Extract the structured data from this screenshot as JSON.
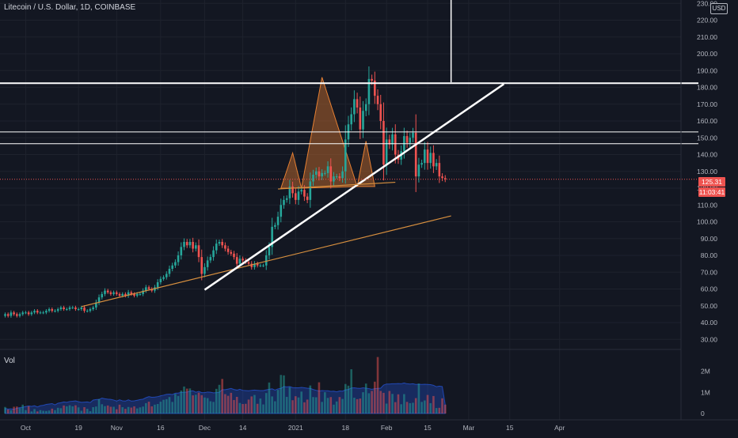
{
  "header": {
    "symbol": "Litecoin / U.S. Dollar, 1D, COINBASE",
    "volume_label": "Vol",
    "currency_badge": "USD",
    "last_price_tag": "125.31",
    "countdown_tag": "11:03:41"
  },
  "colors": {
    "background": "#131722",
    "grid": "#1e222d",
    "axis_text": "#b2b5be",
    "up_candle": "#26a69a",
    "down_candle": "#ef5350",
    "pattern_fill": "#b0632b",
    "pattern_stroke": "#e57f32",
    "trendline_orange": "#d8903f",
    "drawing_white": "#ffffff",
    "volume_ma_fill": "#2962ff"
  },
  "chart_data": [
    {
      "type": "candlestick",
      "title": "Litecoin / U.S. Dollar, 1D, COINBASE",
      "ylim": [
        24,
        232
      ],
      "y_scale": "linear",
      "y_ticks": [
        30,
        40,
        50,
        60,
        70,
        80,
        90,
        100,
        110,
        120,
        130,
        140,
        150,
        160,
        170,
        180,
        190,
        200,
        210,
        220,
        230
      ],
      "y_tick_labels": [
        "30.00",
        "40.00",
        "50.00",
        "60.00",
        "70.00",
        "80.00",
        "90.00",
        "100.00",
        "110.00",
        "120.00",
        "130.00",
        "140.00",
        "150.00",
        "160.00",
        "170.00",
        "180.00",
        "190.00",
        "200.00",
        "210.00",
        "220.00",
        "230.00"
      ],
      "x_start": "2020-09-24",
      "x_tick_labels": [
        {
          "label": "Oct",
          "date": "2020-10-01"
        },
        {
          "label": "19",
          "date": "2020-10-19"
        },
        {
          "label": "Nov",
          "date": "2020-11-01"
        },
        {
          "label": "16",
          "date": "2020-11-16"
        },
        {
          "label": "Dec",
          "date": "2020-12-01"
        },
        {
          "label": "14",
          "date": "2020-12-14"
        },
        {
          "label": "2021",
          "date": "2021-01-01"
        },
        {
          "label": "18",
          "date": "2021-01-18"
        },
        {
          "label": "Feb",
          "date": "2021-02-01"
        },
        {
          "label": "15",
          "date": "2021-02-15"
        },
        {
          "label": "Mar",
          "date": "2021-03-01"
        },
        {
          "label": "15",
          "date": "2021-03-15"
        },
        {
          "label": "Apr",
          "date": "2021-04-01"
        }
      ],
      "last_price": 125.31,
      "series": [
        {
          "name": "Price",
          "close": [
            45,
            44,
            46,
            45,
            44,
            45,
            46,
            46,
            45,
            46,
            47,
            46,
            46,
            46,
            47,
            48,
            47,
            47,
            48,
            49,
            48,
            48,
            49,
            49,
            48,
            48,
            49,
            47,
            47,
            48,
            49,
            52,
            55,
            57,
            59,
            58,
            57,
            58,
            57,
            56,
            57,
            56,
            58,
            57,
            56,
            57,
            57,
            59,
            61,
            60,
            59,
            61,
            64,
            66,
            67,
            69,
            72,
            74,
            76,
            80,
            85,
            88,
            86,
            88,
            84,
            86,
            79,
            69,
            73,
            77,
            79,
            83,
            87,
            88,
            86,
            84,
            82,
            81,
            79,
            75,
            78,
            77,
            76,
            75,
            73,
            75,
            74,
            74,
            74,
            80,
            85,
            97,
            98,
            103,
            110,
            113,
            114,
            121,
            117,
            113,
            118,
            119,
            115,
            113,
            124,
            128,
            130,
            127,
            129,
            129,
            133,
            124,
            127,
            127,
            126,
            130,
            149,
            158,
            164,
            173,
            168,
            155,
            166,
            170,
            185,
            184,
            175,
            170,
            160,
            134,
            149,
            146,
            152,
            140,
            137,
            142,
            151,
            147,
            150,
            153,
            127,
            134,
            135,
            143,
            135,
            141,
            133,
            135,
            127,
            126,
            125.31
          ],
          "volume_millions": [
            0.24,
            0.21,
            0.22,
            0.2,
            0.25,
            0.28,
            0.3,
            0.33,
            0.36,
            0.34,
            0.37,
            0.31,
            0.37,
            0.39,
            0.43,
            0.45,
            0.47,
            0.41,
            0.49,
            0.51,
            0.55,
            0.53,
            0.57,
            0.58,
            0.6,
            0.56,
            0.53,
            0.54,
            0.55,
            0.52,
            0.64,
            0.66,
            0.67,
            0.73,
            0.7,
            0.68,
            0.67,
            0.64,
            0.59,
            0.65,
            0.6,
            0.59,
            0.65,
            0.59,
            0.6,
            0.63,
            0.66,
            0.68,
            0.75,
            0.8,
            0.77,
            0.78,
            0.8,
            0.84,
            0.87,
            0.91,
            0.92,
            0.9,
            0.96,
            0.97,
            1,
            1.01,
            1.02,
            1.06,
            1.08,
            1.01,
            1.05,
            0.99,
            0.99,
            1.02,
            1.01,
            0.98,
            0.99,
            1.01,
            1.13,
            1.13,
            1.16,
            1.19,
            1.14,
            1.11,
            1.15,
            1.1,
            1.09,
            1.08,
            1.1,
            1.11,
            1.1,
            1.09,
            1.09,
            1.12,
            1.15,
            1.17,
            1.11,
            1.17,
            1.19,
            1.28,
            1.26,
            1.28,
            1.23,
            1.22,
            1.22,
            1.24,
            1.22,
            1.2,
            1.19,
            1.14,
            1.1,
            1.07,
            1.09,
            1.08,
            1.08,
            1.05,
            1.06,
            1.03,
            1.07,
            1.06,
            1.12,
            1.14,
            1.21,
            1.22,
            1.2,
            1.19,
            1.22,
            1.2,
            1.18,
            1.15,
            1.18,
            1.19,
            1.2,
            1.35,
            1.4,
            1.4,
            1.41,
            1.41,
            1.42,
            1.41,
            1.45,
            1.41,
            1.4,
            1.41,
            1.38,
            1.39,
            1.38,
            1.39,
            1.38,
            1.37,
            1.34,
            1.27,
            1.3,
            1.28,
            0.42
          ]
        }
      ],
      "trendlines": [
        {
          "from": [
            "2020-10-20",
            49.5
          ],
          "to": [
            "2021-02-23",
            103.5
          ],
          "color": "orange"
        },
        {
          "from": [
            "2020-12-01",
            59.5
          ],
          "to": [
            "2021-03-13",
            182
          ],
          "color": "white"
        },
        {
          "from": [
            "2020-12-26",
            119.5
          ],
          "to": [
            "2021-02-04",
            123.5
          ],
          "color": "orange"
        }
      ],
      "horizontal_lines": [
        182.5,
        153.5,
        146.5
      ],
      "vertical_lines": [
        {
          "date": "2021-02-23",
          "from": 183,
          "to": 232
        }
      ],
      "pattern_triangles": [
        {
          "points": [
            [
              "2020-12-27",
              120
            ],
            [
              "2020-12-31",
              141
            ],
            [
              "2021-01-03",
              120
            ]
          ]
        },
        {
          "points": [
            [
              "2021-01-03",
              120
            ],
            [
              "2021-01-10",
              186
            ],
            [
              "2021-01-22",
              121
            ]
          ]
        },
        {
          "points": [
            [
              "2021-01-22",
              121
            ],
            [
              "2021-01-25",
              148
            ],
            [
              "2021-01-28",
              121
            ]
          ]
        }
      ]
    },
    {
      "type": "bar",
      "title": "Vol",
      "ylim": [
        0,
        3.04
      ],
      "y_ticks": [
        0,
        1,
        2
      ],
      "y_tick_labels": [
        "0",
        "1M",
        "2M"
      ],
      "series": [
        {
          "name": "Vol",
          "values": [
            0.31,
            0.19,
            0.16,
            0.32,
            0.33,
            0.26,
            0.42,
            0.16,
            0.34,
            0.1,
            0.21,
            0.1,
            0.16,
            0.13,
            0.12,
            0.14,
            0.23,
            0.16,
            0.27,
            0.25,
            0.38,
            0.34,
            0.39,
            0.34,
            0.39,
            0.29,
            0.13,
            0.3,
            0.22,
            0.11,
            0.3,
            0.33,
            0.68,
            0.44,
            0.35,
            0.38,
            0.32,
            0.32,
            0.2,
            0.42,
            0.3,
            0.22,
            0.31,
            0.28,
            0.34,
            0.24,
            0.29,
            0.33,
            0.49,
            0.56,
            0.34,
            0.42,
            0.45,
            0.56,
            0.65,
            0.68,
            0.78,
            0.55,
            0.93,
            0.83,
            1.09,
            1.28,
            1.18,
            1.19,
            0.86,
            0.89,
            0.99,
            0.87,
            0.76,
            0.73,
            0.58,
            0.55,
            1.17,
            1.36,
            1.64,
            0.92,
            0.84,
            0.98,
            0.64,
            0.79,
            0.5,
            0.45,
            0.46,
            0.66,
            0.81,
            0.88,
            0.46,
            0.71,
            0.43,
            0.97,
            1.47,
            0.81,
            0.58,
            1.12,
            1.83,
            1.81,
            0.79,
            1.25,
            0.63,
            0.82,
            0.76,
            1.04,
            0.53,
            0.66,
            1.33,
            0.78,
            0.77,
            1.48,
            0.55,
            1.01,
            0.74,
            0.78,
            0.42,
            0.57,
            0.78,
            0.69,
            1.4,
            1.32,
            2.1,
            0.75,
            0.68,
            0.71,
            1.01,
            1.42,
            0.96,
            1.07,
            1.51,
            2.68,
            1.07,
            0.98,
            0.47,
            1.07,
            0.93,
            0.54,
            0.91,
            0.44,
            0.92,
            0.55,
            0.49,
            0.51,
            0.73,
            1.42,
            0.55,
            0.62,
            0.88,
            0.49,
            0.83,
            0.26,
            0.27,
            0.72,
            0.42
          ]
        }
      ]
    }
  ]
}
